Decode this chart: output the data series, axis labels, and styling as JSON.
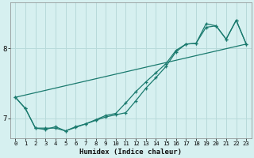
{
  "xlabel": "Humidex (Indice chaleur)",
  "background_color": "#d6f0f0",
  "grid_color": "#b8dada",
  "line_color": "#1a7a6e",
  "xlim": [
    -0.5,
    23.5
  ],
  "ylim": [
    6.72,
    8.65
  ],
  "x_ticks": [
    0,
    1,
    2,
    3,
    4,
    5,
    6,
    7,
    8,
    9,
    10,
    11,
    12,
    13,
    14,
    15,
    16,
    17,
    18,
    19,
    20,
    21,
    22,
    23
  ],
  "y_ticks": [
    7,
    8
  ],
  "line1_x": [
    0,
    1,
    2,
    3,
    4,
    5,
    6,
    7,
    8,
    9,
    10,
    11,
    12,
    13,
    14,
    15,
    16,
    17,
    18,
    19,
    20,
    21,
    22,
    23
  ],
  "line1_y": [
    7.3,
    7.14,
    6.86,
    6.84,
    6.88,
    6.82,
    6.87,
    6.92,
    6.98,
    7.04,
    7.07,
    7.22,
    7.38,
    7.52,
    7.65,
    7.78,
    7.97,
    8.06,
    8.07,
    8.3,
    8.32,
    8.13,
    8.4,
    8.06
  ],
  "line2_x": [
    0,
    1,
    2,
    3,
    4,
    5,
    6,
    7,
    8,
    9,
    10,
    11,
    12,
    13,
    14,
    15,
    16,
    17,
    18,
    19,
    20,
    21,
    22,
    23
  ],
  "line2_y": [
    7.3,
    7.14,
    6.86,
    6.86,
    6.86,
    6.82,
    6.88,
    6.92,
    6.97,
    7.02,
    7.05,
    7.08,
    7.25,
    7.43,
    7.58,
    7.74,
    7.95,
    8.06,
    8.07,
    8.35,
    8.32,
    8.13,
    8.4,
    8.06
  ],
  "line3_x": [
    0,
    23
  ],
  "line3_y": [
    7.3,
    8.06
  ]
}
